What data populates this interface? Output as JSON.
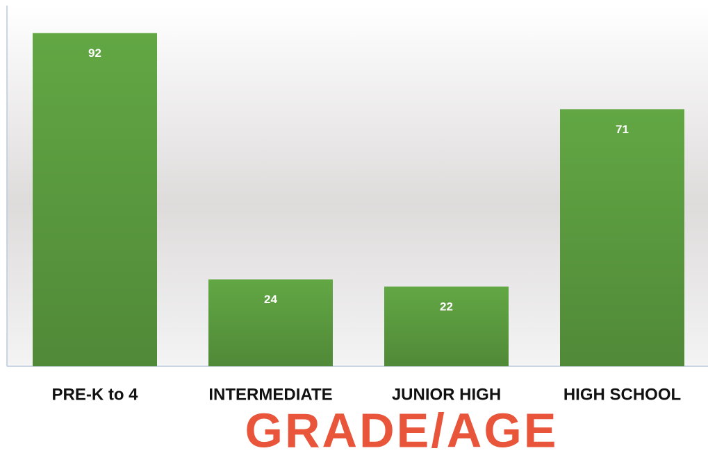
{
  "chart_data": {
    "type": "bar",
    "x_label": "GRADE/AGE",
    "categories": [
      "PRE-K to 4",
      "INTERMEDIATE",
      "JUNIOR HIGH",
      "HIGH SCHOOL"
    ],
    "values": [
      92,
      24,
      22,
      71
    ],
    "color": "#62a744",
    "ylim": [
      0,
      100
    ]
  }
}
